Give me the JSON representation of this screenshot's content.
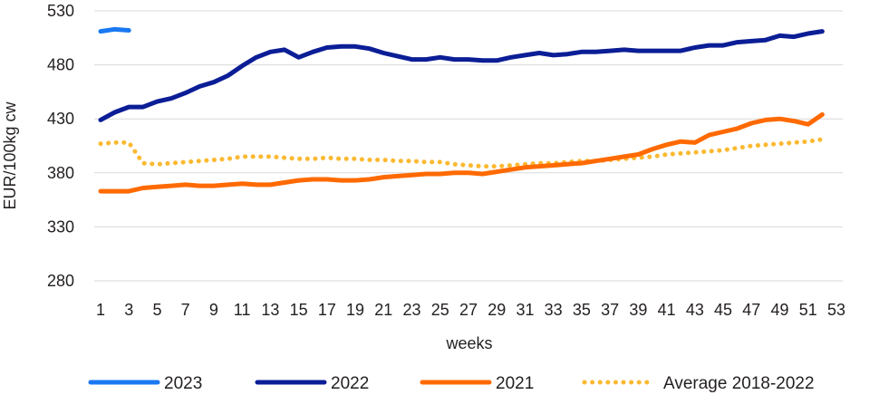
{
  "chart_data": {
    "type": "line",
    "title": "",
    "xlabel": "weeks",
    "ylabel": "EUR/100kg cw",
    "xlim": [
      1,
      53
    ],
    "ylim": [
      280,
      530
    ],
    "x_ticks": [
      1,
      3,
      5,
      7,
      9,
      11,
      13,
      15,
      17,
      19,
      21,
      23,
      25,
      27,
      29,
      31,
      33,
      35,
      37,
      39,
      41,
      43,
      45,
      47,
      49,
      51,
      53
    ],
    "y_ticks": [
      280,
      330,
      380,
      430,
      480,
      530
    ],
    "grid": "horizontal",
    "legend_position": "bottom",
    "series": [
      {
        "name": "2023",
        "color": "#1a78f2",
        "style": "solid",
        "x": [
          1,
          2,
          3
        ],
        "values": [
          511,
          513,
          512
        ]
      },
      {
        "name": "2022",
        "color": "#0b1e96",
        "style": "solid",
        "x": [
          1,
          2,
          3,
          4,
          5,
          6,
          7,
          8,
          9,
          10,
          11,
          12,
          13,
          14,
          15,
          16,
          17,
          18,
          19,
          20,
          21,
          22,
          23,
          24,
          25,
          26,
          27,
          28,
          29,
          30,
          31,
          32,
          33,
          34,
          35,
          36,
          37,
          38,
          39,
          40,
          41,
          42,
          43,
          44,
          45,
          46,
          47,
          48,
          49,
          50,
          51,
          52
        ],
        "values": [
          429,
          436,
          441,
          441,
          446,
          449,
          454,
          460,
          464,
          470,
          479,
          487,
          492,
          494,
          487,
          492,
          496,
          497,
          497,
          495,
          491,
          488,
          485,
          485,
          487,
          485,
          485,
          484,
          484,
          487,
          489,
          491,
          489,
          490,
          492,
          492,
          493,
          494,
          493,
          493,
          493,
          493,
          496,
          498,
          498,
          501,
          502,
          503,
          507,
          506,
          509,
          511
        ]
      },
      {
        "name": "2021",
        "color": "#ff6a00",
        "style": "solid",
        "x": [
          1,
          2,
          3,
          4,
          5,
          6,
          7,
          8,
          9,
          10,
          11,
          12,
          13,
          14,
          15,
          16,
          17,
          18,
          19,
          20,
          21,
          22,
          23,
          24,
          25,
          26,
          27,
          28,
          29,
          30,
          31,
          32,
          33,
          34,
          35,
          36,
          37,
          38,
          39,
          40,
          41,
          42,
          43,
          44,
          45,
          46,
          47,
          48,
          49,
          50,
          51,
          52
        ],
        "values": [
          363,
          363,
          363,
          366,
          367,
          368,
          369,
          368,
          368,
          369,
          370,
          369,
          369,
          371,
          373,
          374,
          374,
          373,
          373,
          374,
          376,
          377,
          378,
          379,
          379,
          380,
          380,
          379,
          381,
          383,
          385,
          386,
          387,
          388,
          389,
          391,
          393,
          395,
          397,
          402,
          406,
          409,
          408,
          415,
          418,
          421,
          426,
          429,
          430,
          428,
          425,
          434
        ]
      },
      {
        "name": "Average 2018-2022",
        "color": "#fbb931",
        "style": "dotted",
        "x": [
          1,
          2,
          3,
          4,
          5,
          6,
          7,
          8,
          9,
          10,
          11,
          12,
          13,
          14,
          15,
          16,
          17,
          18,
          19,
          20,
          21,
          22,
          23,
          24,
          25,
          26,
          27,
          28,
          29,
          30,
          31,
          32,
          33,
          34,
          35,
          36,
          37,
          38,
          39,
          40,
          41,
          42,
          43,
          44,
          45,
          46,
          47,
          48,
          49,
          50,
          51,
          52
        ],
        "values": [
          407,
          408,
          408,
          389,
          388,
          389,
          390,
          391,
          392,
          393,
          395,
          395,
          395,
          394,
          393,
          393,
          394,
          393,
          393,
          392,
          392,
          391,
          391,
          390,
          390,
          388,
          387,
          386,
          386,
          387,
          388,
          389,
          389,
          390,
          391,
          391,
          392,
          393,
          394,
          395,
          397,
          398,
          399,
          400,
          401,
          403,
          405,
          406,
          407,
          408,
          409,
          411
        ]
      }
    ]
  }
}
